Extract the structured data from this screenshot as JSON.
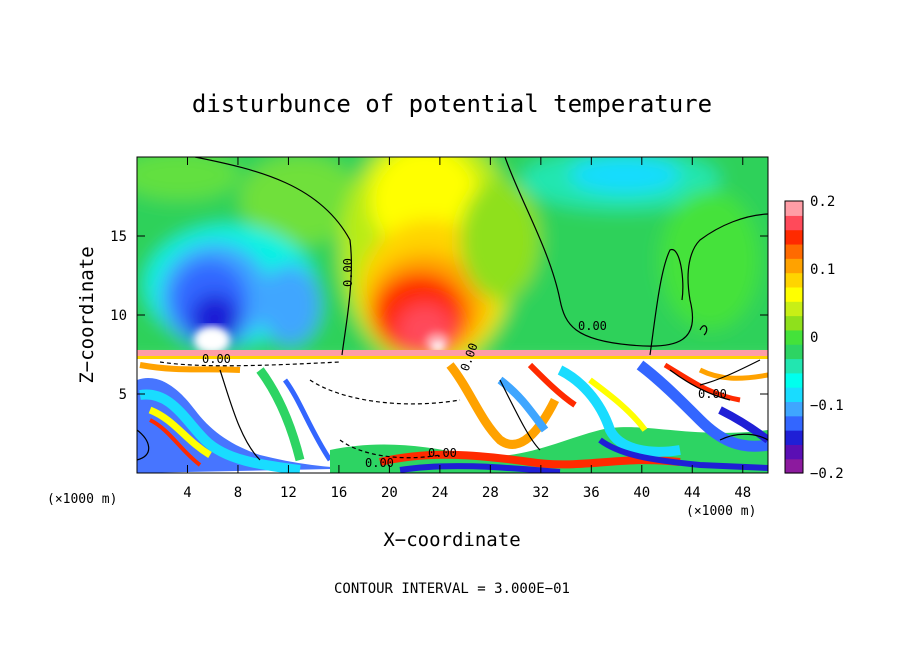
{
  "chart_data": {
    "type": "heatmap",
    "title": "disturbunce of potential temperature",
    "xlabel": "X−coordinate",
    "ylabel": "Z−coordinate",
    "x_unit_left": "(×1000 m)",
    "x_unit_right": "(×1000 m)",
    "xlim": [
      0,
      50
    ],
    "ylim": [
      0,
      20
    ],
    "x_ticks": [
      4,
      8,
      12,
      16,
      20,
      24,
      28,
      32,
      36,
      40,
      44,
      48
    ],
    "x_tick_labels": [
      "4",
      "8",
      "12",
      "16",
      "20",
      "24",
      "28",
      "32",
      "36",
      "40",
      "44",
      "48"
    ],
    "y_ticks": [
      5,
      10,
      15
    ],
    "y_tick_labels": [
      "5",
      "10",
      "15"
    ],
    "colorbar": {
      "min": -0.2,
      "max": 0.2,
      "ticks": [
        0.2,
        0.1,
        0,
        -0.1,
        -0.2
      ],
      "tick_labels": [
        "0.2",
        "0.1",
        "0",
        "−0.1",
        "−0.2"
      ],
      "colors": [
        "#8c1a9e",
        "#5a0fb4",
        "#1f1fd6",
        "#3366ff",
        "#3fa6ff",
        "#19dcff",
        "#00ffee",
        "#22e6b0",
        "#2dd463",
        "#44e23a",
        "#8fe01c",
        "#c8ef16",
        "#ffff00",
        "#ffd400",
        "#ffa200",
        "#ff6a00",
        "#ff2a00",
        "#ff4a5a",
        "#ff9da6"
      ]
    },
    "contour_labels": [
      "0.00",
      "0.00",
      "0.00",
      "0.00",
      "0.00",
      "0.00",
      "0.00"
    ],
    "contour_interval_text": "CONTOUR INTERVAL = 3.000E−01"
  }
}
